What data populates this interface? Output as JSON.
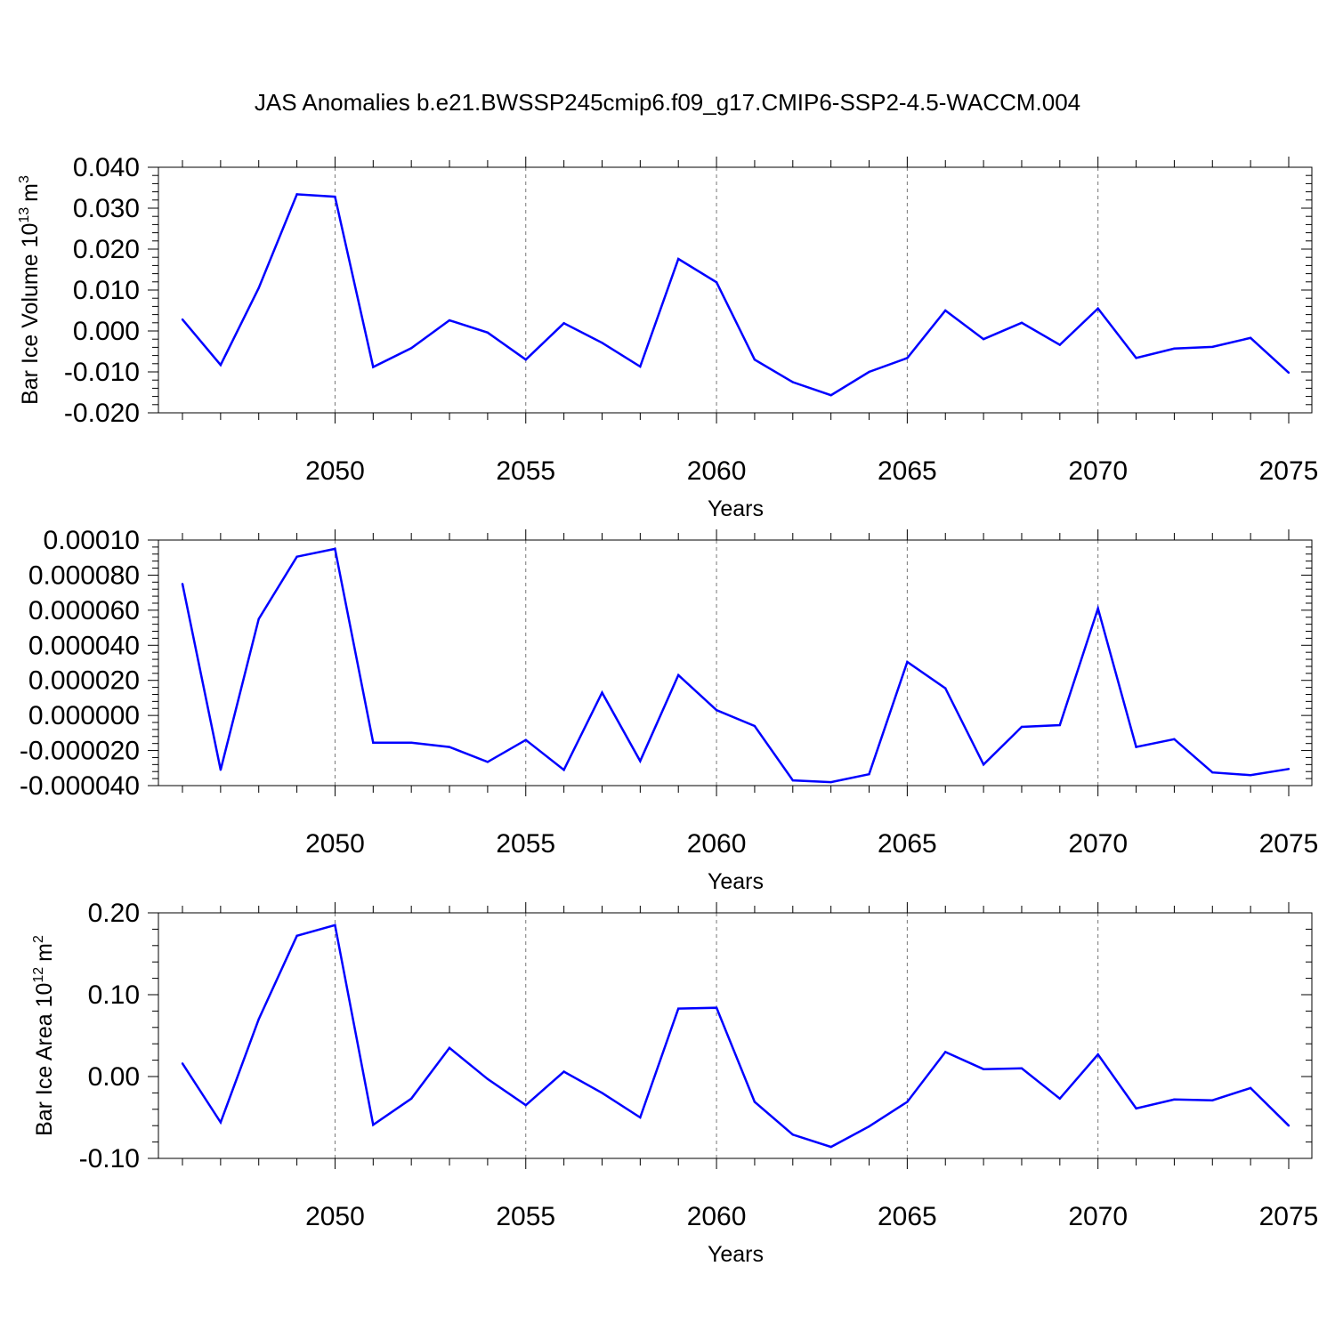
{
  "title": "JAS Anomalies b.e21.BWSSP245cmip6.f09_g17.CMIP6-SSP2-4.5-WACCM.004",
  "colors": {
    "line": "#0000ff",
    "axis": "#000000",
    "grid": "#777777"
  },
  "chart_data": [
    {
      "type": "line",
      "ylabel_main": "Bar Ice Volume 10",
      "ylabel_sup": "13",
      "ylabel_unit": "m",
      "ylabel_unit_sup": "3",
      "xlabel": "Years",
      "xlim": [
        2046,
        2075
      ],
      "ylim": [
        -0.02,
        0.04
      ],
      "xticks": [
        "2050",
        "2055",
        "2060",
        "2065",
        "2070",
        "2075"
      ],
      "yticks": [
        {
          "v": 0.04,
          "label": "0.040"
        },
        {
          "v": 0.03,
          "label": "0.030"
        },
        {
          "v": 0.02,
          "label": "0.020"
        },
        {
          "v": 0.01,
          "label": "0.010"
        },
        {
          "v": 0.0,
          "label": "0.000"
        },
        {
          "v": -0.01,
          "label": "-0.010"
        },
        {
          "v": -0.02,
          "label": "-0.020"
        }
      ],
      "grid_x": [
        2050,
        2055,
        2060,
        2065,
        2070
      ],
      "x": [
        2046,
        2047,
        2048,
        2049,
        2050,
        2051,
        2052,
        2053,
        2054,
        2055,
        2056,
        2057,
        2058,
        2059,
        2060,
        2061,
        2062,
        2063,
        2064,
        2065,
        2066,
        2067,
        2068,
        2069,
        2070,
        2071,
        2072,
        2073,
        2074,
        2075
      ],
      "y": [
        0.0028,
        -0.0083,
        0.0105,
        0.0334,
        0.0328,
        -0.0088,
        -0.0042,
        0.0026,
        -0.0004,
        -0.007,
        0.0019,
        -0.0029,
        -0.0087,
        0.0176,
        0.0119,
        -0.007,
        -0.0125,
        -0.0157,
        -0.01,
        -0.0066,
        0.005,
        -0.002,
        0.002,
        -0.0034,
        0.0055,
        -0.0066,
        -0.0043,
        -0.0039,
        -0.0017,
        -0.0102
      ]
    },
    {
      "type": "line",
      "ylabel_main": "",
      "xlabel": "Years",
      "xlim": [
        2046,
        2075
      ],
      "ylim": [
        -4e-05,
        0.0001
      ],
      "xticks": [
        "2050",
        "2055",
        "2060",
        "2065",
        "2070",
        "2075"
      ],
      "yticks": [
        {
          "v": 0.0001,
          "label": "0.00010"
        },
        {
          "v": 8e-05,
          "label": "0.000080"
        },
        {
          "v": 6e-05,
          "label": "0.000060"
        },
        {
          "v": 4e-05,
          "label": "0.000040"
        },
        {
          "v": 2e-05,
          "label": "0.000020"
        },
        {
          "v": 0.0,
          "label": "0.000000"
        },
        {
          "v": -2e-05,
          "label": "-0.000020"
        },
        {
          "v": -4e-05,
          "label": "-0.000040"
        }
      ],
      "grid_x": [
        2050,
        2055,
        2060,
        2065,
        2070
      ],
      "x": [
        2046,
        2047,
        2048,
        2049,
        2050,
        2051,
        2052,
        2053,
        2054,
        2055,
        2056,
        2057,
        2058,
        2059,
        2060,
        2061,
        2062,
        2063,
        2064,
        2065,
        2066,
        2067,
        2068,
        2069,
        2070,
        2071,
        2072,
        2073,
        2074,
        2075
      ],
      "y": [
        7.5e-05,
        -3.1e-05,
        5.5e-05,
        9.05e-05,
        9.5e-05,
        -1.55e-05,
        -1.55e-05,
        -1.8e-05,
        -2.65e-05,
        -1.4e-05,
        -3.1e-05,
        1.3e-05,
        -2.6e-05,
        2.3e-05,
        3e-06,
        -6e-06,
        -3.7e-05,
        -3.8e-05,
        -3.35e-05,
        3.05e-05,
        1.55e-05,
        -2.8e-05,
        -6.5e-06,
        -5.5e-06,
        6.1e-05,
        -1.8e-05,
        -1.35e-05,
        -3.25e-05,
        -3.4e-05,
        -3.05e-05
      ]
    },
    {
      "type": "line",
      "ylabel_main": "Bar Ice Area 10",
      "ylabel_sup": "12",
      "ylabel_unit": "m",
      "ylabel_unit_sup": "2",
      "xlabel": "Years",
      "xlim": [
        2046,
        2075
      ],
      "ylim": [
        -0.1,
        0.2
      ],
      "xticks": [
        "2050",
        "2055",
        "2060",
        "2065",
        "2070",
        "2075"
      ],
      "yticks": [
        {
          "v": 0.2,
          "label": "0.20"
        },
        {
          "v": 0.1,
          "label": "0.10"
        },
        {
          "v": 0.0,
          "label": "0.00"
        },
        {
          "v": -0.1,
          "label": "-0.10"
        }
      ],
      "grid_x": [
        2050,
        2055,
        2060,
        2065,
        2070
      ],
      "x": [
        2046,
        2047,
        2048,
        2049,
        2050,
        2051,
        2052,
        2053,
        2054,
        2055,
        2056,
        2057,
        2058,
        2059,
        2060,
        2061,
        2062,
        2063,
        2064,
        2065,
        2066,
        2067,
        2068,
        2069,
        2070,
        2071,
        2072,
        2073,
        2074,
        2075
      ],
      "y": [
        0.016,
        -0.056,
        0.07,
        0.172,
        0.185,
        -0.059,
        -0.027,
        0.035,
        -0.003,
        -0.035,
        0.006,
        -0.02,
        -0.05,
        0.083,
        0.084,
        -0.031,
        -0.071,
        -0.086,
        -0.061,
        -0.031,
        0.03,
        0.009,
        0.01,
        -0.027,
        0.027,
        -0.039,
        -0.028,
        -0.029,
        -0.014,
        -0.06
      ]
    }
  ]
}
